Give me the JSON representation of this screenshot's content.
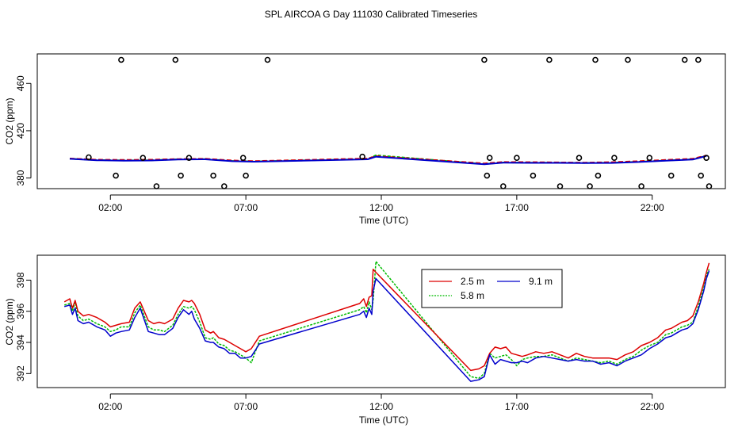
{
  "title": "SPL AIRCOA G  Day 111030  Calibrated Timeseries",
  "colors": {
    "red": "#dd0000",
    "green": "#00bb00",
    "blue": "#0000cc",
    "axis": "#000000"
  },
  "chart_data": [
    {
      "type": "line+scatter",
      "xlabel": "Time (UTC)",
      "ylabel": "CO2 (ppm)",
      "xlim": [
        -0.7,
        24.7
      ],
      "ylim": [
        371,
        485
      ],
      "x_ticks": [
        2,
        7,
        12,
        17,
        22
      ],
      "x_tick_labels": [
        "02:00",
        "07:00",
        "12:00",
        "17:00",
        "22:00"
      ],
      "y_ticks": [
        380,
        420,
        460
      ],
      "y_tick_labels": [
        "380",
        "420",
        "460"
      ],
      "series": [
        {
          "name": "2.5 m",
          "color": "red",
          "x": [
            0.5,
            1.5,
            2.5,
            3.5,
            4.5,
            5.5,
            6.5,
            7.3,
            11.5,
            11.8,
            15.8,
            16.5,
            17.5,
            18.5,
            19.5,
            20.5,
            21.5,
            22.5,
            23.5,
            24.0
          ],
          "y": [
            396.5,
            395.5,
            395.3,
            395.5,
            396.0,
            396.3,
            394.8,
            394.3,
            396.5,
            398.5,
            392.3,
            393.5,
            393.4,
            393.2,
            393.0,
            393.4,
            394.2,
            395.3,
            396.3,
            399.0
          ]
        },
        {
          "name": "5.8 m",
          "color": "green",
          "x": [
            0.5,
            1.5,
            2.5,
            3.5,
            4.5,
            5.5,
            6.5,
            7.3,
            11.5,
            11.8,
            15.8,
            16.5,
            17.5,
            18.5,
            19.5,
            20.5,
            21.5,
            22.5,
            23.5,
            24.0
          ],
          "y": [
            396.3,
            395.2,
            394.9,
            395.0,
            395.8,
            396.0,
            394.4,
            394.0,
            396.0,
            399.2,
            391.8,
            393.1,
            393.0,
            392.9,
            392.7,
            392.9,
            393.7,
            394.8,
            395.8,
            398.7
          ]
        },
        {
          "name": "9.1 m",
          "color": "blue",
          "x": [
            0.5,
            1.5,
            2.5,
            3.5,
            4.5,
            5.5,
            6.5,
            7.3,
            11.5,
            11.8,
            15.8,
            16.5,
            17.5,
            18.5,
            19.5,
            20.5,
            21.5,
            22.5,
            23.5,
            24.0
          ],
          "y": [
            396.2,
            395.0,
            394.7,
            394.8,
            395.7,
            395.8,
            394.2,
            393.8,
            395.8,
            398.0,
            391.6,
            392.9,
            392.8,
            392.8,
            392.6,
            392.7,
            393.5,
            394.6,
            395.6,
            398.6
          ]
        }
      ],
      "points": {
        "x": [
          1.2,
          2.2,
          2.4,
          3.7,
          3.2,
          4.4,
          4.6,
          4.9,
          5.8,
          6.2,
          6.9,
          7.0,
          7.8,
          11.3,
          15.8,
          15.9,
          16.0,
          16.5,
          17.0,
          17.6,
          18.2,
          18.6,
          19.3,
          19.7,
          19.9,
          20.0,
          20.6,
          21.1,
          21.6,
          21.9,
          22.7,
          23.2,
          23.7,
          23.8,
          24.0,
          24.1
        ],
        "y": [
          397.5,
          382,
          480,
          373,
          397,
          480,
          382,
          397,
          382,
          373,
          397,
          382,
          480,
          398,
          480,
          382,
          397,
          373,
          397,
          382,
          480,
          373,
          397,
          373,
          480,
          382,
          397,
          480,
          373,
          397,
          382,
          480,
          480,
          382,
          397,
          373
        ]
      }
    },
    {
      "type": "line",
      "xlabel": "Time (UTC)",
      "ylabel": "CO2 (ppm)",
      "xlim": [
        -0.7,
        24.7
      ],
      "ylim": [
        391.1,
        399.6
      ],
      "x_ticks": [
        2,
        7,
        12,
        17,
        22
      ],
      "x_tick_labels": [
        "02:00",
        "07:00",
        "12:00",
        "17:00",
        "22:00"
      ],
      "y_ticks": [
        392,
        394,
        396,
        398
      ],
      "y_tick_labels": [
        "392",
        "394",
        "396",
        "398"
      ],
      "legend": {
        "position": "top-center",
        "entries": [
          "2.5 m",
          "5.8 m",
          "9.1 m"
        ]
      },
      "series": [
        {
          "name": "2.5 m",
          "color": "red",
          "x": [
            0.3,
            0.5,
            0.6,
            0.7,
            0.8,
            1.0,
            1.2,
            1.5,
            1.8,
            2.0,
            2.2,
            2.4,
            2.7,
            2.9,
            3.1,
            3.4,
            3.6,
            3.8,
            4.0,
            4.3,
            4.5,
            4.7,
            4.9,
            5.0,
            5.1,
            5.3,
            5.5,
            5.7,
            5.8,
            6.0,
            6.2,
            6.4,
            6.6,
            6.8,
            7.0,
            7.2,
            7.5,
            11.2,
            11.35,
            11.45,
            11.55,
            11.65,
            11.7,
            11.8,
            15.3,
            15.6,
            15.8,
            16.0,
            16.2,
            16.4,
            16.6,
            16.8,
            17.0,
            17.2,
            17.4,
            17.7,
            18.0,
            18.3,
            18.6,
            18.9,
            19.2,
            19.5,
            19.8,
            20.1,
            20.4,
            20.7,
            21.0,
            21.3,
            21.6,
            21.9,
            22.2,
            22.5,
            22.7,
            22.9,
            23.1,
            23.3,
            23.5,
            23.7,
            23.9,
            24.0,
            24.1
          ],
          "y": [
            396.6,
            396.8,
            396.2,
            396.7,
            396.0,
            395.7,
            395.8,
            395.6,
            395.3,
            395.0,
            395.1,
            395.2,
            395.3,
            396.2,
            396.6,
            395.4,
            395.2,
            395.3,
            395.2,
            395.5,
            396.2,
            396.7,
            396.6,
            396.7,
            396.5,
            395.8,
            394.8,
            394.6,
            394.7,
            394.3,
            394.2,
            394.0,
            393.8,
            393.6,
            393.4,
            393.6,
            394.4,
            396.5,
            396.8,
            396.3,
            396.9,
            397.0,
            398.7,
            398.5,
            392.2,
            392.3,
            392.5,
            393.3,
            393.7,
            393.6,
            393.7,
            393.3,
            393.2,
            393.1,
            393.2,
            393.4,
            393.3,
            393.4,
            393.2,
            393.0,
            393.3,
            393.1,
            393.0,
            393.0,
            393.0,
            392.9,
            393.2,
            393.4,
            393.8,
            394.0,
            394.3,
            394.8,
            394.9,
            395.1,
            395.3,
            395.4,
            395.7,
            396.6,
            397.8,
            398.5,
            399.1
          ]
        },
        {
          "name": "5.8 m",
          "color": "green",
          "x": [
            0.3,
            0.5,
            0.6,
            0.7,
            0.8,
            1.0,
            1.2,
            1.5,
            1.8,
            2.0,
            2.2,
            2.4,
            2.7,
            2.9,
            3.1,
            3.4,
            3.6,
            3.8,
            4.0,
            4.3,
            4.5,
            4.7,
            4.9,
            5.0,
            5.1,
            5.3,
            5.5,
            5.7,
            5.8,
            6.0,
            6.2,
            6.4,
            6.6,
            6.8,
            7.0,
            7.2,
            7.5,
            11.2,
            11.35,
            11.45,
            11.55,
            11.65,
            11.7,
            11.8,
            15.3,
            15.6,
            15.8,
            16.0,
            16.2,
            16.4,
            16.6,
            16.8,
            17.0,
            17.2,
            17.4,
            17.7,
            18.0,
            18.3,
            18.6,
            18.9,
            19.2,
            19.5,
            19.8,
            20.1,
            20.4,
            20.7,
            21.0,
            21.3,
            21.6,
            21.9,
            22.2,
            22.5,
            22.7,
            22.9,
            23.1,
            23.3,
            23.5,
            23.7,
            23.9,
            24.0,
            24.1
          ],
          "y": [
            396.4,
            396.5,
            396.0,
            396.6,
            395.7,
            395.4,
            395.5,
            395.2,
            395.0,
            394.7,
            394.8,
            395.0,
            395.0,
            395.9,
            396.4,
            395.0,
            394.8,
            394.8,
            394.7,
            395.1,
            395.8,
            396.3,
            396.2,
            396.3,
            396.1,
            395.3,
            394.3,
            394.2,
            394.3,
            393.9,
            393.8,
            393.5,
            393.4,
            393.2,
            393.0,
            392.7,
            394.1,
            396.1,
            396.3,
            395.9,
            396.6,
            396.1,
            396.7,
            399.2,
            391.8,
            391.7,
            392.0,
            393.3,
            393.0,
            393.1,
            393.2,
            392.9,
            392.5,
            392.9,
            393.0,
            393.1,
            393.1,
            393.2,
            393.0,
            392.8,
            393.0,
            392.9,
            392.8,
            392.7,
            392.8,
            392.6,
            392.9,
            393.1,
            393.5,
            393.8,
            394.0,
            394.5,
            394.6,
            394.8,
            395.0,
            395.1,
            395.3,
            396.3,
            397.5,
            398.3,
            398.7
          ]
        },
        {
          "name": "9.1 m",
          "color": "blue",
          "x": [
            0.3,
            0.5,
            0.6,
            0.7,
            0.8,
            1.0,
            1.2,
            1.5,
            1.8,
            2.0,
            2.2,
            2.4,
            2.7,
            2.9,
            3.1,
            3.4,
            3.6,
            3.8,
            4.0,
            4.3,
            4.5,
            4.7,
            4.9,
            5.0,
            5.1,
            5.3,
            5.5,
            5.7,
            5.8,
            6.0,
            6.2,
            6.4,
            6.6,
            6.8,
            7.0,
            7.2,
            7.5,
            11.2,
            11.35,
            11.45,
            11.55,
            11.65,
            11.7,
            11.8,
            15.3,
            15.6,
            15.8,
            16.0,
            16.2,
            16.4,
            16.6,
            16.8,
            17.0,
            17.2,
            17.4,
            17.7,
            18.0,
            18.3,
            18.6,
            18.9,
            19.2,
            19.5,
            19.8,
            20.1,
            20.4,
            20.7,
            21.0,
            21.3,
            21.6,
            21.9,
            22.2,
            22.5,
            22.7,
            22.9,
            23.1,
            23.3,
            23.5,
            23.7,
            23.9,
            24.0,
            24.1
          ],
          "y": [
            396.3,
            396.4,
            395.8,
            396.2,
            395.4,
            395.2,
            395.3,
            395.0,
            394.8,
            394.4,
            394.6,
            394.7,
            394.8,
            395.6,
            396.2,
            394.7,
            394.6,
            394.5,
            394.5,
            394.9,
            395.6,
            396.1,
            395.8,
            396.0,
            395.5,
            394.9,
            394.1,
            394.0,
            394.0,
            393.7,
            393.6,
            393.3,
            393.3,
            393.0,
            393.0,
            393.1,
            393.9,
            395.8,
            396.0,
            395.6,
            396.2,
            395.8,
            397.3,
            398.1,
            391.5,
            391.6,
            391.8,
            393.2,
            392.6,
            392.9,
            392.8,
            392.7,
            392.7,
            392.8,
            392.7,
            393.0,
            393.1,
            393.0,
            392.9,
            392.8,
            392.9,
            392.8,
            392.8,
            392.6,
            392.7,
            392.5,
            392.8,
            393.0,
            393.2,
            393.6,
            393.9,
            394.3,
            394.4,
            394.6,
            394.8,
            394.9,
            395.2,
            396.1,
            397.3,
            398.1,
            398.6
          ]
        }
      ]
    }
  ]
}
